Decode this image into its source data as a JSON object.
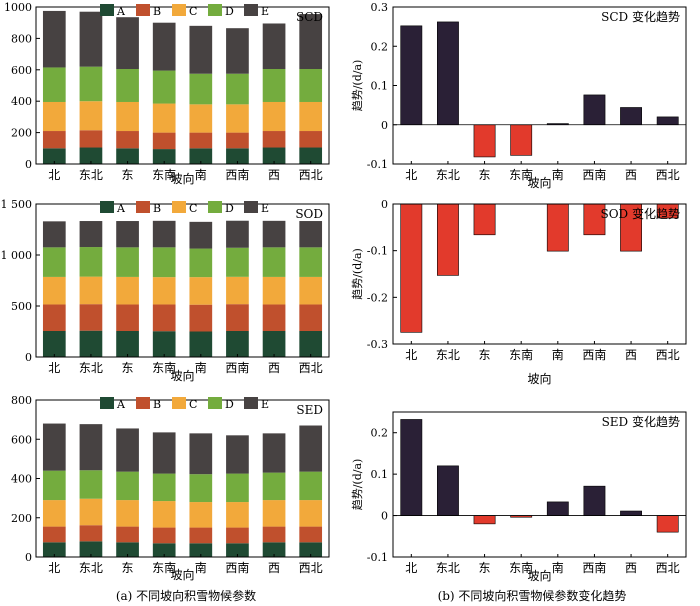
{
  "captions": {
    "left": "(a) 不同坡向积雪物候参数",
    "right": "(b) 不同坡向积雪物候参数变化趋势"
  },
  "colors": {
    "A": "#1f4a33",
    "B": "#c0502d",
    "C": "#f2a93b",
    "D": "#74ac3e",
    "E": "#474242",
    "trend_positive": "#2a2036",
    "trend_negative": "#e23a2c"
  },
  "chart_data": [
    {
      "id": "scd-stacked",
      "type": "bar",
      "stacked": true,
      "label": "SCD",
      "categories": [
        "北",
        "东北",
        "东",
        "东南",
        "南",
        "西南",
        "西",
        "西北"
      ],
      "xlabel": "坡向",
      "ylabel": "",
      "ylim": [
        0,
        1000
      ],
      "yticks": [
        0,
        200,
        400,
        600,
        800,
        1000
      ],
      "ytick_labels": [
        "0",
        "200",
        "400",
        "600",
        "800",
        "1000"
      ],
      "legend_position": "top",
      "series": [
        {
          "name": "A",
          "values": [
            100,
            105,
            100,
            95,
            100,
            100,
            105,
            105
          ]
        },
        {
          "name": "B",
          "values": [
            110,
            110,
            110,
            105,
            100,
            100,
            105,
            105
          ]
        },
        {
          "name": "C",
          "values": [
            185,
            185,
            185,
            185,
            180,
            180,
            185,
            185
          ]
        },
        {
          "name": "D",
          "values": [
            220,
            220,
            210,
            210,
            195,
            195,
            210,
            210
          ]
        },
        {
          "name": "E",
          "values": [
            360,
            350,
            330,
            305,
            305,
            290,
            290,
            350
          ]
        }
      ]
    },
    {
      "id": "scd-trend",
      "type": "bar",
      "title": "SCD 变化趋势",
      "categories": [
        "北",
        "东北",
        "东",
        "东南",
        "南",
        "西南",
        "西",
        "西北"
      ],
      "xlabel": "坡向",
      "ylabel": "趋势/(d/a)",
      "ylim": [
        -0.1,
        0.3
      ],
      "yticks": [
        -0.1,
        0,
        0.1,
        0.2,
        0.3
      ],
      "ytick_labels": [
        "-0.1",
        "0",
        "0.1",
        "0.2",
        "0.3"
      ],
      "values": [
        0.252,
        0.262,
        -0.082,
        -0.078,
        0.003,
        0.076,
        0.044,
        0.02
      ]
    },
    {
      "id": "sod-stacked",
      "type": "bar",
      "stacked": true,
      "label": "SOD",
      "categories": [
        "北",
        "东北",
        "东",
        "东南",
        "南",
        "西南",
        "西",
        "西北"
      ],
      "xlabel": "坡向",
      "ylabel": "",
      "ylim": [
        0,
        1500
      ],
      "yticks": [
        0,
        500,
        1000,
        1500
      ],
      "ytick_labels": [
        "0",
        "500",
        "1 000",
        "1 500"
      ],
      "legend_position": "top",
      "series": [
        {
          "name": "A",
          "values": [
            255,
            258,
            255,
            253,
            250,
            255,
            255,
            255
          ]
        },
        {
          "name": "B",
          "values": [
            260,
            260,
            260,
            262,
            263,
            263,
            260,
            260
          ]
        },
        {
          "name": "C",
          "values": [
            270,
            270,
            270,
            268,
            270,
            268,
            270,
            270
          ]
        },
        {
          "name": "D",
          "values": [
            290,
            290,
            290,
            292,
            280,
            285,
            290,
            290
          ]
        },
        {
          "name": "E",
          "values": [
            255,
            255,
            258,
            260,
            262,
            265,
            260,
            258
          ]
        }
      ]
    },
    {
      "id": "sod-trend",
      "type": "bar",
      "title": "SOD 变化趋势",
      "categories": [
        "北",
        "东北",
        "东",
        "东南",
        "南",
        "西南",
        "西",
        "西北"
      ],
      "xlabel": "坡向",
      "ylabel": "趋势/(d/a)",
      "ylim": [
        -0.3,
        0
      ],
      "yticks": [
        -0.3,
        -0.2,
        -0.1,
        0
      ],
      "ytick_labels": [
        "-0.3",
        "-0.2",
        "-0.1",
        "0"
      ],
      "values": [
        -0.275,
        -0.153,
        -0.066,
        0.0,
        -0.101,
        -0.066,
        -0.101,
        -0.03
      ]
    },
    {
      "id": "sed-stacked",
      "type": "bar",
      "stacked": true,
      "label": "SED",
      "categories": [
        "北",
        "东北",
        "东",
        "东南",
        "南",
        "西南",
        "西",
        "西北"
      ],
      "xlabel": "坡向",
      "ylabel": "",
      "ylim": [
        0,
        800
      ],
      "yticks": [
        0,
        200,
        400,
        600,
        800
      ],
      "ytick_labels": [
        "0",
        "200",
        "400",
        "600",
        "800"
      ],
      "legend_position": "top",
      "series": [
        {
          "name": "A",
          "values": [
            75,
            80,
            75,
            70,
            70,
            70,
            75,
            75
          ]
        },
        {
          "name": "B",
          "values": [
            80,
            82,
            80,
            80,
            80,
            80,
            80,
            80
          ]
        },
        {
          "name": "C",
          "values": [
            135,
            135,
            135,
            135,
            130,
            130,
            135,
            135
          ]
        },
        {
          "name": "D",
          "values": [
            150,
            145,
            145,
            140,
            142,
            145,
            140,
            145
          ]
        },
        {
          "name": "E",
          "values": [
            240,
            235,
            220,
            210,
            208,
            195,
            200,
            235
          ]
        }
      ]
    },
    {
      "id": "sed-trend",
      "type": "bar",
      "title": "SED 变化趋势",
      "categories": [
        "北",
        "东北",
        "东",
        "东南",
        "南",
        "西南",
        "西",
        "西北"
      ],
      "xlabel": "坡向",
      "ylabel": "趋势/(d/a)",
      "ylim": [
        -0.1,
        0.25
      ],
      "yticks": [
        -0.1,
        0,
        0.1,
        0.2
      ],
      "ytick_labels": [
        "-0.1",
        "0",
        "0.1",
        "0.2"
      ],
      "values": [
        0.232,
        0.12,
        -0.02,
        -0.004,
        0.033,
        0.071,
        0.011,
        -0.04
      ]
    }
  ]
}
